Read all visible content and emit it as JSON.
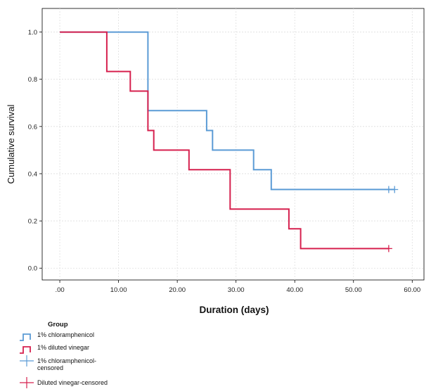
{
  "chart_data": {
    "type": "line",
    "subtype": "kaplan-meier-step",
    "xlabel": "Duration (days)",
    "ylabel": "Cumulative survival",
    "xlim": [
      -3,
      62
    ],
    "ylim": [
      -0.05,
      1.1
    ],
    "xticks": [
      0,
      10,
      20,
      30,
      40,
      50,
      60
    ],
    "xtick_labels": [
      ".00",
      "10.00",
      "20.00",
      "30.00",
      "40.00",
      "50.00",
      "60.00"
    ],
    "yticks": [
      0,
      0.2,
      0.4,
      0.6,
      0.8,
      1.0
    ],
    "ytick_labels": [
      "0.0",
      "0.2",
      "0.4",
      "0.6",
      "0.8",
      "1.0"
    ],
    "grid": true,
    "legend_title": "Group",
    "legend_position": "bottom-left",
    "series": [
      {
        "name": "1% chloramphenicol",
        "color": "#5b9bd5",
        "points": [
          [
            0,
            1.0
          ],
          [
            15,
            1.0
          ],
          [
            15,
            0.667
          ],
          [
            25,
            0.667
          ],
          [
            25,
            0.583
          ],
          [
            26,
            0.583
          ],
          [
            26,
            0.5
          ],
          [
            33,
            0.5
          ],
          [
            33,
            0.417
          ],
          [
            36,
            0.417
          ],
          [
            36,
            0.333
          ],
          [
            57,
            0.333
          ]
        ],
        "censored_name": "1% chloramphenicol-censored",
        "censored": [
          [
            56,
            0.333
          ],
          [
            57,
            0.333
          ]
        ]
      },
      {
        "name": "1% diluted vinegar",
        "color": "#d6204e",
        "points": [
          [
            0,
            1.0
          ],
          [
            8,
            1.0
          ],
          [
            8,
            0.833
          ],
          [
            12,
            0.833
          ],
          [
            12,
            0.75
          ],
          [
            15,
            0.75
          ],
          [
            15,
            0.583
          ],
          [
            16,
            0.583
          ],
          [
            16,
            0.5
          ],
          [
            22,
            0.5
          ],
          [
            22,
            0.417
          ],
          [
            29,
            0.417
          ],
          [
            29,
            0.25
          ],
          [
            39,
            0.25
          ],
          [
            39,
            0.167
          ],
          [
            41,
            0.167
          ],
          [
            41,
            0.083
          ],
          [
            56,
            0.083
          ]
        ],
        "censored_name": "Diluted vinegar-censored",
        "censored": [
          [
            56,
            0.083
          ]
        ]
      }
    ]
  }
}
